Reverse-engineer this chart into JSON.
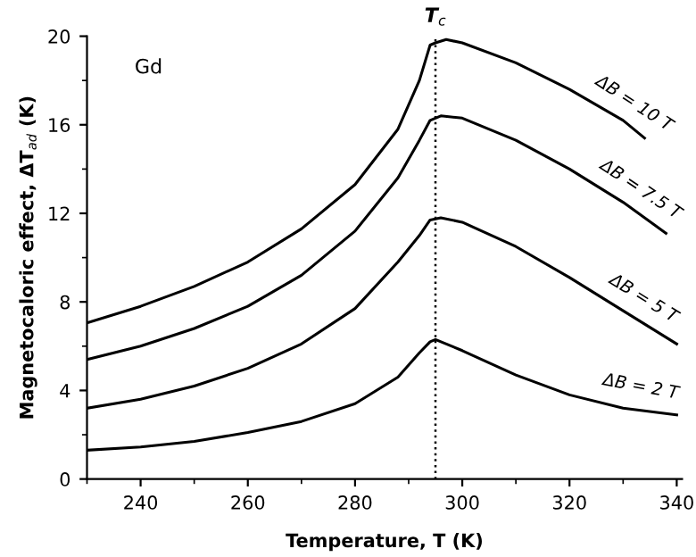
{
  "chart_data": {
    "type": "line",
    "xlabel": "Temperature, T (K)",
    "ylabel": "Magnetocaloric effect, ΔT$_{ad}$ (K)",
    "xlim": [
      230,
      341
    ],
    "ylim": [
      0,
      20
    ],
    "xticks": [
      240,
      260,
      280,
      300,
      320,
      340
    ],
    "yticks": [
      0,
      4,
      8,
      12,
      16,
      20
    ],
    "grid": false,
    "legend": false,
    "marker": "none",
    "line_style": "solid",
    "annotations": [
      "Gd"
    ],
    "ref_lines": [
      {
        "axis": "x",
        "value": 295,
        "label": "T$_{c}$",
        "line_style": "dotted",
        "color": "#000000"
      }
    ],
    "series": [
      {
        "name": "ΔB = 10 T",
        "color": "#000000",
        "x": [
          230,
          240,
          250,
          260,
          270,
          280,
          288,
          292,
          294,
          295,
          297,
          300,
          310,
          320,
          330,
          334
        ],
        "values": [
          7.05,
          7.8,
          8.7,
          9.8,
          11.3,
          13.3,
          15.8,
          18.0,
          19.6,
          19.7,
          19.85,
          19.7,
          18.8,
          17.6,
          16.2,
          15.4
        ]
      },
      {
        "name": "ΔB = 7.5 T",
        "color": "#000000",
        "x": [
          230,
          240,
          250,
          260,
          270,
          280,
          288,
          292,
          294,
          296,
          300,
          310,
          320,
          330,
          338
        ],
        "values": [
          5.4,
          6.0,
          6.8,
          7.8,
          9.2,
          11.2,
          13.6,
          15.3,
          16.2,
          16.4,
          16.3,
          15.3,
          14.0,
          12.5,
          11.1
        ]
      },
      {
        "name": "ΔB = 5 T",
        "color": "#000000",
        "x": [
          230,
          240,
          250,
          260,
          270,
          280,
          288,
          292,
          294,
          296,
          300,
          310,
          320,
          330,
          340
        ],
        "values": [
          3.2,
          3.6,
          4.2,
          5.0,
          6.1,
          7.7,
          9.8,
          11.0,
          11.7,
          11.8,
          11.6,
          10.5,
          9.1,
          7.6,
          6.1
        ]
      },
      {
        "name": "ΔB = 2 T",
        "color": "#000000",
        "x": [
          230,
          240,
          250,
          260,
          270,
          280,
          288,
          292,
          294,
          295,
          300,
          310,
          320,
          330,
          340
        ],
        "values": [
          1.3,
          1.45,
          1.7,
          2.1,
          2.6,
          3.4,
          4.6,
          5.7,
          6.2,
          6.3,
          5.8,
          4.7,
          3.8,
          3.2,
          2.9
        ]
      }
    ]
  }
}
